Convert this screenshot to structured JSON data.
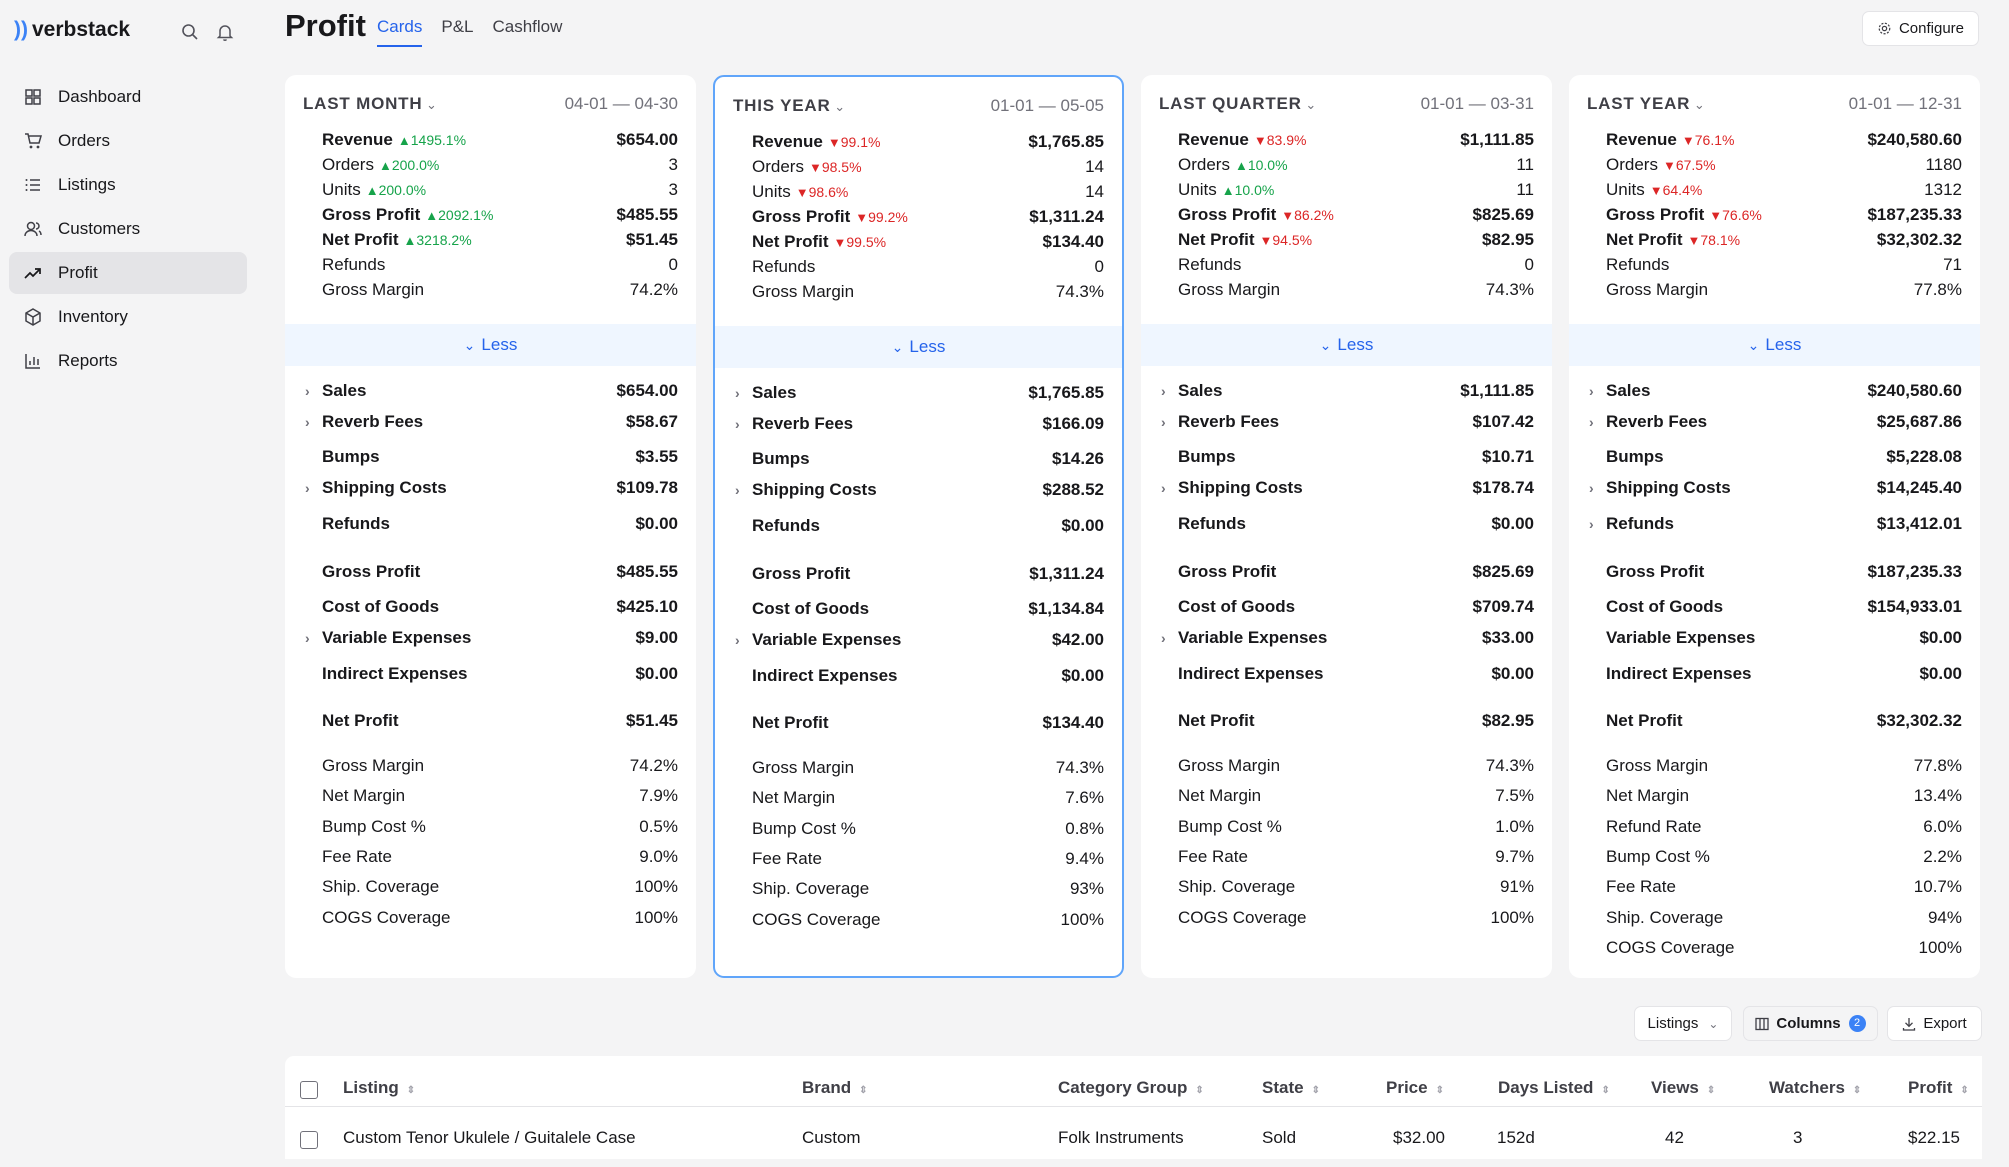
{
  "app": {
    "name": "verbstack",
    "logo_mark": "))"
  },
  "sidebar": {
    "items": [
      {
        "label": "Dashboard",
        "icon": "dashboard-icon"
      },
      {
        "label": "Orders",
        "icon": "cart-icon"
      },
      {
        "label": "Listings",
        "icon": "list-icon"
      },
      {
        "label": "Customers",
        "icon": "user-icon"
      },
      {
        "label": "Profit",
        "icon": "trend-icon",
        "active": true
      },
      {
        "label": "Inventory",
        "icon": "box-icon"
      },
      {
        "label": "Reports",
        "icon": "chart-icon"
      }
    ]
  },
  "header": {
    "title": "Profit",
    "tabs": [
      "Cards",
      "P&L",
      "Cashflow"
    ],
    "configure": "Configure"
  },
  "less_label": "Less",
  "cards": [
    {
      "period": "LAST MONTH",
      "range": "04-01 — 04-30",
      "summary": [
        {
          "label": "Revenue",
          "bold": true,
          "change": "1495.1%",
          "dir": "up",
          "value": "$654.00"
        },
        {
          "label": "Orders",
          "bold": false,
          "change": "200.0%",
          "dir": "up",
          "value": "3"
        },
        {
          "label": "Units",
          "bold": false,
          "change": "200.0%",
          "dir": "up",
          "value": "3"
        },
        {
          "label": "Gross Profit",
          "bold": true,
          "change": "2092.1%",
          "dir": "up",
          "value": "$485.55"
        },
        {
          "label": "Net Profit",
          "bold": true,
          "change": "3218.2%",
          "dir": "up",
          "value": "$51.45"
        },
        {
          "label": "Refunds",
          "bold": false,
          "change": "",
          "dir": "",
          "value": "0"
        },
        {
          "label": "Gross Margin",
          "bold": false,
          "change": "",
          "dir": "",
          "value": "74.2%"
        }
      ],
      "detail": [
        {
          "label": "Sales",
          "value": "$654.00",
          "caret": true
        },
        {
          "label": "Reverb Fees",
          "value": "$58.67",
          "caret": true
        },
        {
          "label": "Bumps",
          "value": "$3.55",
          "caret": false
        },
        {
          "label": "Shipping Costs",
          "value": "$109.78",
          "caret": true
        },
        {
          "label": "Refunds",
          "value": "$0.00",
          "caret": false
        },
        {
          "label": "Gross Profit",
          "value": "$485.55",
          "caret": false
        },
        {
          "label": "Cost of Goods",
          "value": "$425.10",
          "caret": false
        },
        {
          "label": "Variable Expenses",
          "value": "$9.00",
          "caret": true
        },
        {
          "label": "Indirect Expenses",
          "value": "$0.00",
          "caret": false
        },
        {
          "label": "Net Profit",
          "value": "$51.45",
          "caret": false
        }
      ],
      "metrics": [
        {
          "label": "Gross Margin",
          "value": "74.2%"
        },
        {
          "label": "Net Margin",
          "value": "7.9%"
        },
        {
          "label": "Bump Cost %",
          "value": "0.5%"
        },
        {
          "label": "Fee Rate",
          "value": "9.0%"
        },
        {
          "label": "Ship. Coverage",
          "value": "100%"
        },
        {
          "label": "COGS Coverage",
          "value": "100%"
        }
      ]
    },
    {
      "period": "THIS YEAR",
      "range": "01-01 — 05-05",
      "summary": [
        {
          "label": "Revenue",
          "bold": true,
          "change": "99.1%",
          "dir": "down",
          "value": "$1,765.85"
        },
        {
          "label": "Orders",
          "bold": false,
          "change": "98.5%",
          "dir": "down",
          "value": "14"
        },
        {
          "label": "Units",
          "bold": false,
          "change": "98.6%",
          "dir": "down",
          "value": "14"
        },
        {
          "label": "Gross Profit",
          "bold": true,
          "change": "99.2%",
          "dir": "down",
          "value": "$1,311.24"
        },
        {
          "label": "Net Profit",
          "bold": true,
          "change": "99.5%",
          "dir": "down",
          "value": "$134.40"
        },
        {
          "label": "Refunds",
          "bold": false,
          "change": "",
          "dir": "",
          "value": "0"
        },
        {
          "label": "Gross Margin",
          "bold": false,
          "change": "",
          "dir": "",
          "value": "74.3%"
        }
      ],
      "detail": [
        {
          "label": "Sales",
          "value": "$1,765.85",
          "caret": true
        },
        {
          "label": "Reverb Fees",
          "value": "$166.09",
          "caret": true
        },
        {
          "label": "Bumps",
          "value": "$14.26",
          "caret": false
        },
        {
          "label": "Shipping Costs",
          "value": "$288.52",
          "caret": true
        },
        {
          "label": "Refunds",
          "value": "$0.00",
          "caret": false
        },
        {
          "label": "Gross Profit",
          "value": "$1,311.24",
          "caret": false
        },
        {
          "label": "Cost of Goods",
          "value": "$1,134.84",
          "caret": false
        },
        {
          "label": "Variable Expenses",
          "value": "$42.00",
          "caret": true
        },
        {
          "label": "Indirect Expenses",
          "value": "$0.00",
          "caret": false
        },
        {
          "label": "Net Profit",
          "value": "$134.40",
          "caret": false
        }
      ],
      "metrics": [
        {
          "label": "Gross Margin",
          "value": "74.3%"
        },
        {
          "label": "Net Margin",
          "value": "7.6%"
        },
        {
          "label": "Bump Cost %",
          "value": "0.8%"
        },
        {
          "label": "Fee Rate",
          "value": "9.4%"
        },
        {
          "label": "Ship. Coverage",
          "value": "93%"
        },
        {
          "label": "COGS Coverage",
          "value": "100%"
        }
      ]
    },
    {
      "period": "LAST QUARTER",
      "range": "01-01 — 03-31",
      "summary": [
        {
          "label": "Revenue",
          "bold": true,
          "change": "83.9%",
          "dir": "down",
          "value": "$1,111.85"
        },
        {
          "label": "Orders",
          "bold": false,
          "change": "10.0%",
          "dir": "up",
          "value": "11"
        },
        {
          "label": "Units",
          "bold": false,
          "change": "10.0%",
          "dir": "up",
          "value": "11"
        },
        {
          "label": "Gross Profit",
          "bold": true,
          "change": "86.2%",
          "dir": "down",
          "value": "$825.69"
        },
        {
          "label": "Net Profit",
          "bold": true,
          "change": "94.5%",
          "dir": "down",
          "value": "$82.95"
        },
        {
          "label": "Refunds",
          "bold": false,
          "change": "",
          "dir": "",
          "value": "0"
        },
        {
          "label": "Gross Margin",
          "bold": false,
          "change": "",
          "dir": "",
          "value": "74.3%"
        }
      ],
      "detail": [
        {
          "label": "Sales",
          "value": "$1,111.85",
          "caret": true
        },
        {
          "label": "Reverb Fees",
          "value": "$107.42",
          "caret": true
        },
        {
          "label": "Bumps",
          "value": "$10.71",
          "caret": false
        },
        {
          "label": "Shipping Costs",
          "value": "$178.74",
          "caret": true
        },
        {
          "label": "Refunds",
          "value": "$0.00",
          "caret": false
        },
        {
          "label": "Gross Profit",
          "value": "$825.69",
          "caret": false
        },
        {
          "label": "Cost of Goods",
          "value": "$709.74",
          "caret": false
        },
        {
          "label": "Variable Expenses",
          "value": "$33.00",
          "caret": true
        },
        {
          "label": "Indirect Expenses",
          "value": "$0.00",
          "caret": false
        },
        {
          "label": "Net Profit",
          "value": "$82.95",
          "caret": false
        }
      ],
      "metrics": [
        {
          "label": "Gross Margin",
          "value": "74.3%"
        },
        {
          "label": "Net Margin",
          "value": "7.5%"
        },
        {
          "label": "Bump Cost %",
          "value": "1.0%"
        },
        {
          "label": "Fee Rate",
          "value": "9.7%"
        },
        {
          "label": "Ship. Coverage",
          "value": "91%"
        },
        {
          "label": "COGS Coverage",
          "value": "100%"
        }
      ]
    },
    {
      "period": "LAST YEAR",
      "range": "01-01 — 12-31",
      "summary": [
        {
          "label": "Revenue",
          "bold": true,
          "change": "76.1%",
          "dir": "down",
          "value": "$240,580.60"
        },
        {
          "label": "Orders",
          "bold": false,
          "change": "67.5%",
          "dir": "down",
          "value": "1180"
        },
        {
          "label": "Units",
          "bold": false,
          "change": "64.4%",
          "dir": "down",
          "value": "1312"
        },
        {
          "label": "Gross Profit",
          "bold": true,
          "change": "76.6%",
          "dir": "down",
          "value": "$187,235.33"
        },
        {
          "label": "Net Profit",
          "bold": true,
          "change": "78.1%",
          "dir": "down",
          "value": "$32,302.32"
        },
        {
          "label": "Refunds",
          "bold": false,
          "change": "",
          "dir": "",
          "value": "71"
        },
        {
          "label": "Gross Margin",
          "bold": false,
          "change": "",
          "dir": "",
          "value": "77.8%"
        }
      ],
      "detail": [
        {
          "label": "Sales",
          "value": "$240,580.60",
          "caret": true
        },
        {
          "label": "Reverb Fees",
          "value": "$25,687.86",
          "caret": true
        },
        {
          "label": "Bumps",
          "value": "$5,228.08",
          "caret": false
        },
        {
          "label": "Shipping Costs",
          "value": "$14,245.40",
          "caret": true
        },
        {
          "label": "Refunds",
          "value": "$13,412.01",
          "caret": true
        },
        {
          "label": "Gross Profit",
          "value": "$187,235.33",
          "caret": false
        },
        {
          "label": "Cost of Goods",
          "value": "$154,933.01",
          "caret": false
        },
        {
          "label": "Variable Expenses",
          "value": "$0.00",
          "caret": false
        },
        {
          "label": "Indirect Expenses",
          "value": "$0.00",
          "caret": false
        },
        {
          "label": "Net Profit",
          "value": "$32,302.32",
          "caret": false
        }
      ],
      "metrics": [
        {
          "label": "Gross Margin",
          "value": "77.8%"
        },
        {
          "label": "Net Margin",
          "value": "13.4%"
        },
        {
          "label": "Refund Rate",
          "value": "6.0%"
        },
        {
          "label": "Bump Cost %",
          "value": "2.2%"
        },
        {
          "label": "Fee Rate",
          "value": "10.7%"
        },
        {
          "label": "Ship. Coverage",
          "value": "94%"
        },
        {
          "label": "COGS Coverage",
          "value": "100%"
        }
      ]
    }
  ],
  "toolbar": {
    "listings": "Listings",
    "columns": "Columns",
    "columns_count": "2",
    "export": "Export"
  },
  "table": {
    "columns": [
      "Listing",
      "Brand",
      "Category Group",
      "State",
      "Price",
      "Days Listed",
      "Views",
      "Watchers",
      "Profit"
    ],
    "rows": [
      [
        "Custom Tenor Ukulele / Guitalele Case",
        "Custom",
        "Folk Instruments",
        "Sold",
        "$32.00",
        "152d",
        "42",
        "3",
        "$22.15"
      ]
    ]
  },
  "colors": {
    "accent": "#2563eb",
    "up": "#16a34a",
    "down": "#dc2626"
  }
}
